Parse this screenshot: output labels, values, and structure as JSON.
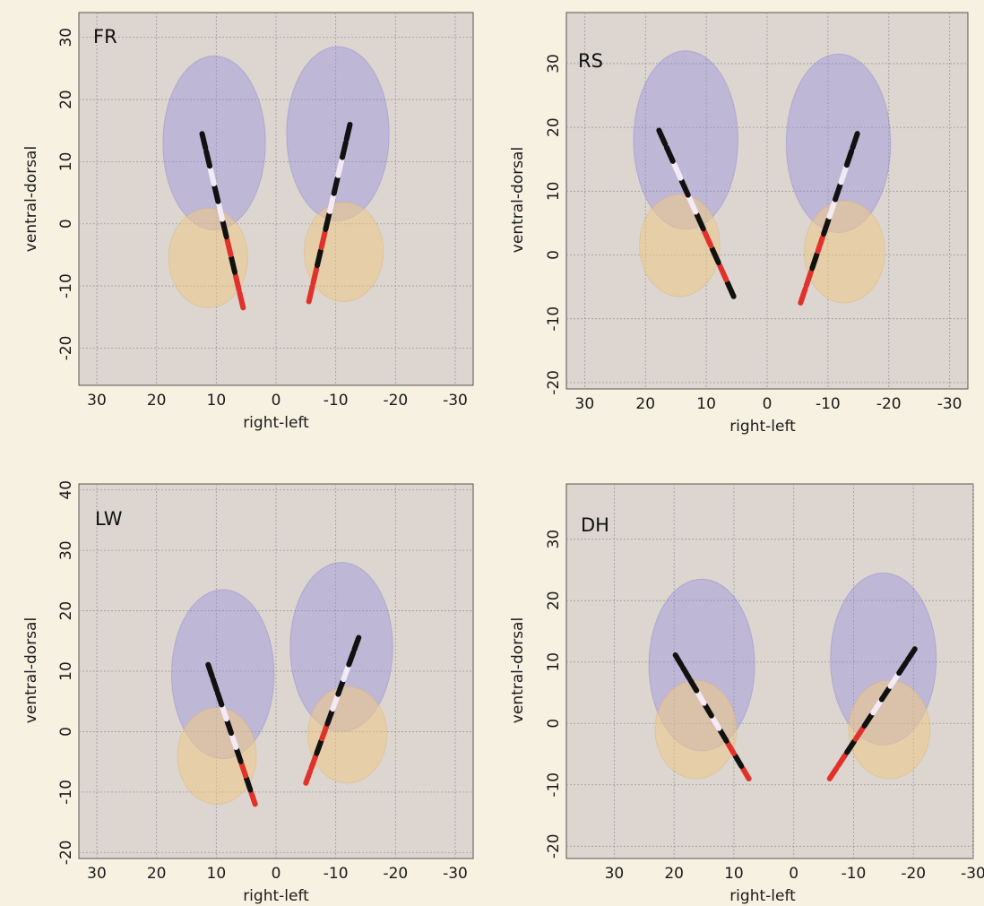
{
  "colors": {
    "page_background": "#f7f1e1",
    "plot_background": "#dcd5d0",
    "gridline": "#9a9a9a",
    "structure_upper": "#8f88e0",
    "structure_lower": "#f2c97a",
    "electrode_colors": [
      "#111111",
      "#f4eaf6",
      "#e0322a"
    ]
  },
  "chart_data": [
    {
      "type": "line",
      "panel_label": "FR",
      "xlabel": "right-left",
      "ylabel": "ventral-dorsal",
      "x_reversed": true,
      "xlim": [
        33,
        -33
      ],
      "ylim": [
        -26,
        34
      ],
      "xticks": [
        30,
        20,
        10,
        0,
        -10,
        -20,
        -30
      ],
      "yticks": [
        -20,
        -10,
        0,
        10,
        20,
        30
      ],
      "xtick_labels": [
        "30",
        "20",
        "10",
        "0",
        "-10",
        "-20",
        "-30"
      ],
      "ytick_labels": [
        "-20",
        "-10",
        "0",
        "10",
        "20",
        "30"
      ],
      "series": [
        {
          "side": "right",
          "x": [
            12.5,
            5.5
          ],
          "y": [
            15,
            -13.5
          ],
          "contacts": [
            "red",
            "red",
            "black",
            "red",
            "black",
            "white",
            "black",
            "white",
            "black",
            "black"
          ]
        },
        {
          "side": "left",
          "x": [
            -12.5,
            -5.5
          ],
          "y": [
            16.5,
            -12.5
          ],
          "contacts": [
            "red",
            "red",
            "black",
            "red",
            "black",
            "white",
            "black",
            "white",
            "black",
            "black"
          ]
        }
      ]
    },
    {
      "type": "line",
      "panel_label": "RS",
      "xlabel": "right-left",
      "ylabel": "ventral-dorsal",
      "x_reversed": true,
      "xlim": [
        33,
        -33
      ],
      "ylim": [
        -21,
        38
      ],
      "xticks": [
        30,
        20,
        10,
        0,
        -10,
        -20,
        -30
      ],
      "yticks": [
        -20,
        -10,
        0,
        10,
        20,
        30
      ],
      "xtick_labels": [
        "30",
        "20",
        "10",
        "0",
        "-10",
        "-20",
        "-30"
      ],
      "ytick_labels": [
        "-20",
        "-10",
        "0",
        "10",
        "20",
        "30"
      ],
      "series": [
        {
          "side": "right",
          "x": [
            18,
            5.5
          ],
          "y": [
            20,
            -6.5
          ],
          "contacts": [
            "black",
            "red",
            "black",
            "red",
            "black",
            "white",
            "black",
            "white",
            "black",
            "black"
          ]
        },
        {
          "side": "left",
          "x": [
            -15,
            -5.5
          ],
          "y": [
            19.5,
            -7.5
          ],
          "contacts": [
            "red",
            "red",
            "black",
            "red",
            "black",
            "white",
            "black",
            "white",
            "black",
            "black"
          ]
        }
      ]
    },
    {
      "type": "line",
      "panel_label": "LW",
      "xlabel": "right-left",
      "ylabel": "ventral-dorsal",
      "x_reversed": true,
      "xlim": [
        33,
        -33
      ],
      "ylim": [
        -21,
        41
      ],
      "xticks": [
        30,
        20,
        10,
        0,
        -10,
        -20,
        -30
      ],
      "yticks": [
        -20,
        -10,
        0,
        10,
        20,
        30,
        40
      ],
      "xtick_labels": [
        "30",
        "20",
        "10",
        "0",
        "-10",
        "-20",
        "-30"
      ],
      "ytick_labels": [
        "-20",
        "-10",
        "0",
        "10",
        "20",
        "30",
        "40"
      ],
      "series": [
        {
          "side": "right",
          "x": [
            11.5,
            3.5
          ],
          "y": [
            11.5,
            -12
          ],
          "contacts": [
            "red",
            "black",
            "red",
            "black",
            "white",
            "black",
            "white",
            "black",
            "black",
            "black"
          ]
        },
        {
          "side": "left",
          "x": [
            -14,
            -5
          ],
          "y": [
            16,
            -8.5
          ],
          "contacts": [
            "red",
            "red",
            "black",
            "red",
            "black",
            "white",
            "black",
            "white",
            "black",
            "black"
          ]
        }
      ]
    },
    {
      "type": "line",
      "panel_label": "DH",
      "xlabel": "right-left",
      "ylabel": "ventral-dorsal",
      "x_reversed": true,
      "xlim": [
        38,
        -30
      ],
      "ylim": [
        -22,
        39
      ],
      "xticks": [
        30,
        20,
        10,
        0,
        -10,
        -20,
        -30
      ],
      "yticks": [
        -20,
        -10,
        0,
        10,
        20,
        30
      ],
      "xtick_labels": [
        "30",
        "20",
        "10",
        "0",
        "-10",
        "-20",
        "-30"
      ],
      "ytick_labels": [
        "-20",
        "-10",
        "0",
        "10",
        "20",
        "30"
      ],
      "series": [
        {
          "side": "right",
          "x": [
            20,
            7.5
          ],
          "y": [
            11.5,
            -9
          ],
          "contacts": [
            "red",
            "black",
            "red",
            "black",
            "white",
            "black",
            "white",
            "black",
            "black",
            "black"
          ]
        },
        {
          "side": "left",
          "x": [
            -20.5,
            -6
          ],
          "y": [
            12.5,
            -9
          ],
          "contacts": [
            "red",
            "red",
            "black",
            "red",
            "black",
            "white",
            "black",
            "white",
            "black",
            "black"
          ]
        }
      ]
    }
  ]
}
